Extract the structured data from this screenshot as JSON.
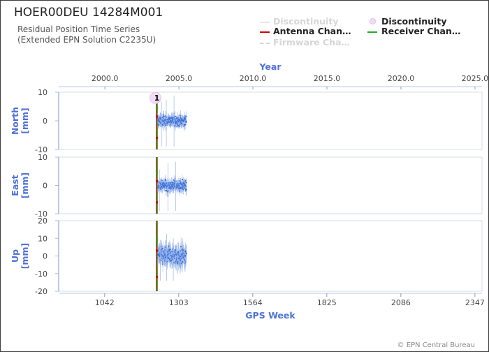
{
  "header": {
    "title": "HOER00DEU 14284M001",
    "subtitle_line1": "Residual Position Time Series",
    "subtitle_line2": "(Extended EPN Solution C2235U)"
  },
  "legend": {
    "items": [
      {
        "label": "Discontinuity",
        "style": "line",
        "color": "#e6e6e6",
        "muted": true
      },
      {
        "label": "Antenna Chan…",
        "style": "line",
        "color": "#d40000",
        "muted": false
      },
      {
        "label": "Firmware Cha…",
        "style": "dashed",
        "color": "#cccccc",
        "muted": true
      },
      {
        "label": "Discontinuity",
        "style": "marker",
        "color": "#e7c8f0",
        "muted": false
      },
      {
        "label": "Receiver Chan…",
        "style": "line",
        "color": "#22aa22",
        "muted": false
      }
    ]
  },
  "chart_data": {
    "type": "scatter",
    "top_axis": {
      "label": "Year",
      "ticks": [
        "2000.0",
        "2005.0",
        "2010.0",
        "2015.0",
        "2020.0",
        "2025.0"
      ],
      "tick_values": [
        2000,
        2005,
        2010,
        2015,
        2020,
        2025
      ]
    },
    "bottom_axis": {
      "label": "GPS Week",
      "ticks": [
        "1042",
        "1303",
        "1564",
        "1825",
        "2086",
        "2347"
      ],
      "tick_values": [
        1042,
        1303,
        1564,
        1825,
        2086,
        2347
      ],
      "range": [
        880,
        2372
      ]
    },
    "events": [
      {
        "type": "antenna_change",
        "gps_week": 1226,
        "color": "#d40000"
      },
      {
        "type": "receiver_change",
        "gps_week": 1226,
        "color": "#22aa22"
      },
      {
        "type": "discontinuity",
        "gps_week": 1226,
        "label": "1",
        "component": "North"
      }
    ],
    "data_span_gps_week": [
      1226,
      1330
    ],
    "series_color": "#3a6fd8",
    "panels": [
      {
        "name": "North",
        "unit": "[mm]",
        "ylim": [
          -10,
          10
        ],
        "ticks": [
          "10",
          "0",
          "-10"
        ],
        "tick_values": [
          10,
          0,
          -10
        ],
        "noise_mm": 1.6,
        "spike_mm": 9
      },
      {
        "name": "East",
        "unit": "[mm]",
        "ylim": [
          -10,
          10
        ],
        "ticks": [
          "10",
          "0",
          "-10"
        ],
        "tick_values": [
          10,
          0,
          -10
        ],
        "noise_mm": 1.6,
        "spike_mm": 9
      },
      {
        "name": "Up",
        "unit": "[mm]",
        "ylim": [
          -20,
          20
        ],
        "ticks": [
          "20",
          "10",
          "0",
          "-10",
          "-20"
        ],
        "tick_values": [
          20,
          10,
          0,
          -10,
          -20
        ],
        "noise_mm": 4.5,
        "spike_mm": 14
      }
    ]
  },
  "footer": {
    "credit": "© EPN Central Bureau"
  }
}
